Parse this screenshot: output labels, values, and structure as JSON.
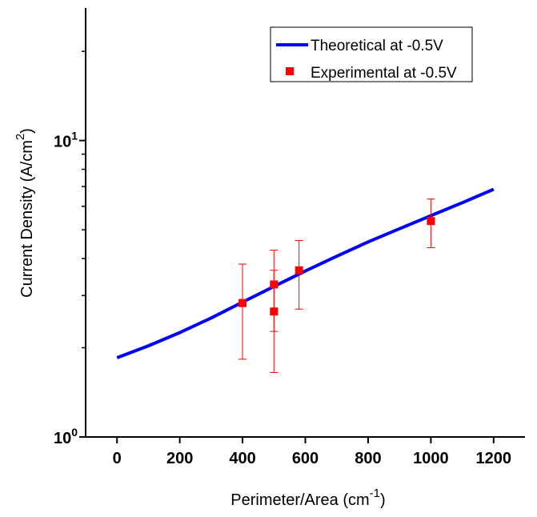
{
  "chart_data": {
    "type": "line",
    "x_axis": {
      "label_base": "Perimeter/Area (cm",
      "label_sup": "-1",
      "label_end": ")",
      "range": [
        -100,
        1300
      ],
      "ticks": [
        0,
        200,
        400,
        600,
        800,
        1000,
        1200
      ],
      "tick_labels": [
        "0",
        "200",
        "400",
        "600",
        "800",
        "1000",
        "1200"
      ]
    },
    "y_axis": {
      "label_base": "Current Density (A/cm",
      "label_sup": "2",
      "label_end": ")",
      "scale": "log",
      "range": [
        1,
        28
      ],
      "ticks": [
        1,
        10
      ],
      "tick_base": "10",
      "tick_exponents": [
        "0",
        "1"
      ]
    },
    "series": [
      {
        "name": "Theoretical at -0.5V",
        "kind": "line",
        "color": "#0000ff",
        "x": [
          0,
          100,
          200,
          300,
          400,
          500,
          600,
          700,
          800,
          900,
          1000,
          1100,
          1200
        ],
        "y": [
          1.85,
          2.03,
          2.25,
          2.52,
          2.85,
          3.22,
          3.63,
          4.07,
          4.55,
          5.04,
          5.58,
          6.17,
          6.85
        ]
      },
      {
        "name": "Experimental at -0.5V",
        "kind": "scatter",
        "color": "#ff0000",
        "points": [
          {
            "x": 400,
            "y": 2.83,
            "y_low": 1.83,
            "y_high": 3.83
          },
          {
            "x": 500,
            "y": 2.65,
            "y_low": 1.65,
            "y_high": 3.65
          },
          {
            "x": 500,
            "y": 3.27,
            "y_low": 2.27,
            "y_high": 4.27
          },
          {
            "x": 580,
            "y": 3.65,
            "y_low": 2.7,
            "y_high": 4.6
          },
          {
            "x": 1000,
            "y": 5.35,
            "y_low": 4.35,
            "y_high": 6.35
          }
        ]
      }
    ],
    "legend": {
      "position": "top-right",
      "entries": [
        "Theoretical at -0.5V",
        "Experimental at -0.5V"
      ]
    },
    "grid": false
  }
}
